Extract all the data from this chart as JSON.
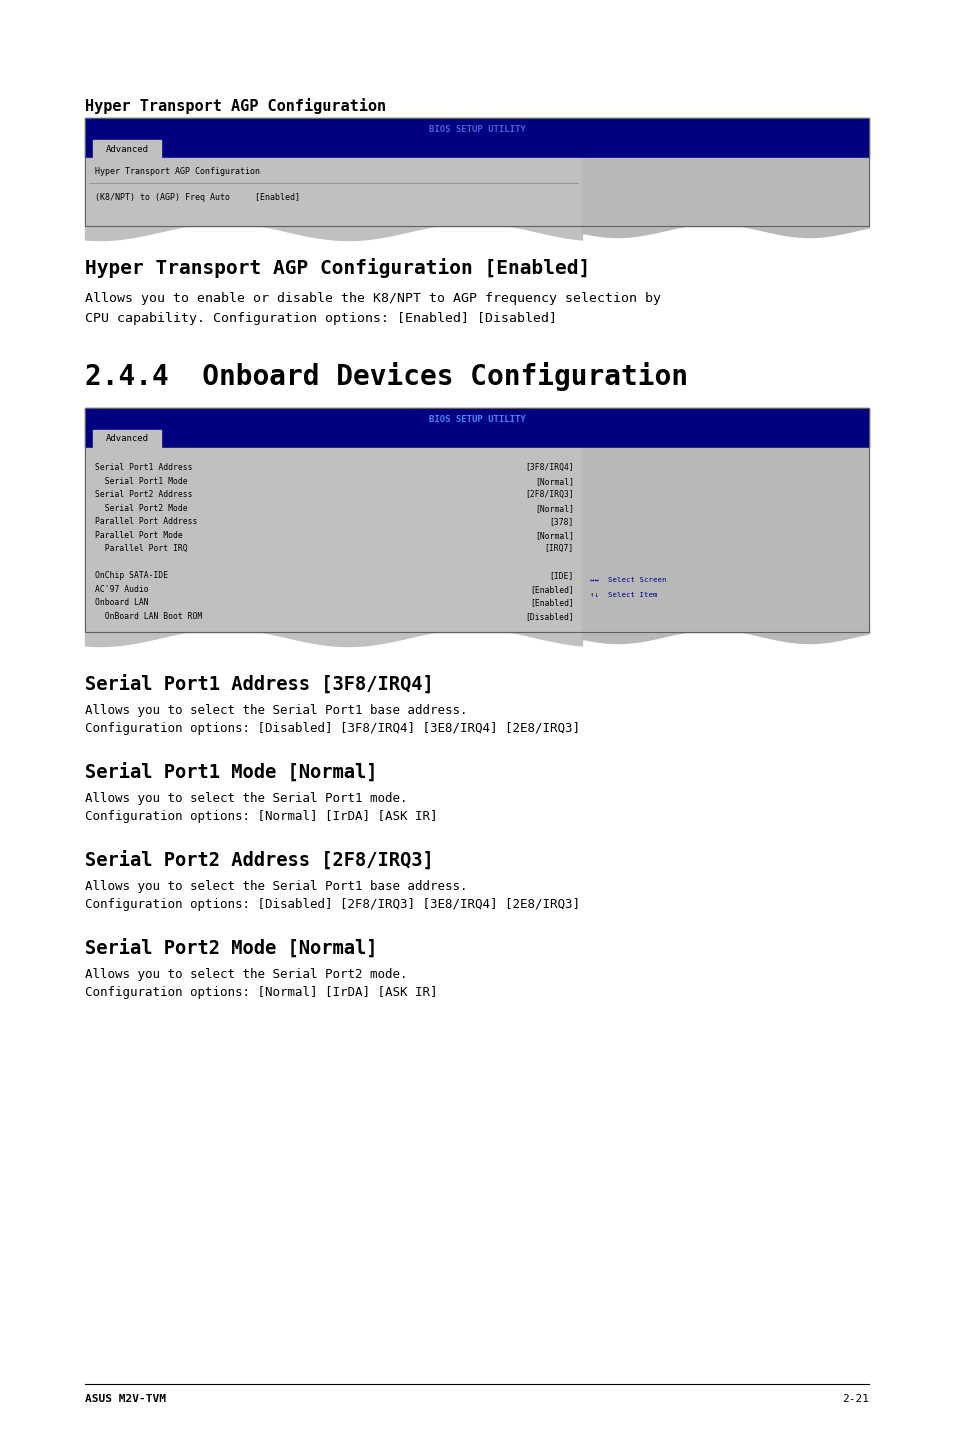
{
  "page_bg": "#ffffff",
  "page_width": 9.54,
  "page_height": 14.38,
  "dpi": 100,
  "section1_title": "Hyper Transport AGP Configuration",
  "section1_title_font": 11,
  "bios1": {
    "header_text": "BIOS SETUP UTILITY",
    "tab_text": "Advanced",
    "bg_color": "#c0c0c0",
    "header_bg": "#000080",
    "header_text_color": "#4466dd",
    "tab_bg": "#000080",
    "tab_selected_bg": "#c0c0c0",
    "tab_selected_text_color": "#000000",
    "right_panel_bg": "#b8b8b8",
    "row1": "Hyper Transport AGP Configuration",
    "row2": "(K8/NPT) to (AGP) Freq Auto     [Enabled]"
  },
  "section2_title": "Hyper Transport AGP Configuration [Enabled]",
  "section2_title_font": 14,
  "section2_body": "Allows you to enable or disable the K8/NPT to AGP frequency selection by\nCPU capability. Configuration options: [Enabled] [Disabled]",
  "section3_title": "2.4.4  Onboard Devices Configuration",
  "section3_title_font": 20,
  "bios2": {
    "header_text": "BIOS SETUP UTILITY",
    "tab_text": "Advanced",
    "bg_color": "#c0c0c0",
    "header_bg": "#000080",
    "header_text_color": "#4488ff",
    "tab_bg": "#000080",
    "tab_selected_bg": "#c0c0c0",
    "tab_selected_text_color": "#000000",
    "right_panel_bg": "#b8b8b8",
    "rows": [
      [
        "Serial Port1 Address",
        "[3F8/IRQ4]"
      ],
      [
        "  Serial Port1 Mode",
        "[Normal]"
      ],
      [
        "Serial Port2 Address",
        "[2F8/IRQ3]"
      ],
      [
        "  Serial Port2 Mode",
        "[Normal]"
      ],
      [
        "Parallel Port Address",
        "[378]"
      ],
      [
        "Parallel Port Mode",
        "[Normal]"
      ],
      [
        "  Parallel Port IRQ",
        "[IRQ7]"
      ],
      [
        "",
        ""
      ],
      [
        "OnChip SATA-IDE",
        "[IDE]"
      ],
      [
        "AC'97 Audio",
        "[Enabled]"
      ],
      [
        "Onboard LAN",
        "[Enabled]"
      ],
      [
        "  OnBoard LAN Boot ROM",
        "[Disabled]"
      ]
    ]
  },
  "section4_title": "Serial Port1 Address [3F8/IRQ4]",
  "section4_body": "Allows you to select the Serial Port1 base address.\nConfiguration options: [Disabled] [3F8/IRQ4] [3E8/IRQ4] [2E8/IRQ3]",
  "section5_title": "Serial Port1 Mode [Normal]",
  "section5_body": "Allows you to select the Serial Port1 mode.\nConfiguration options: [Normal] [IrDA] [ASK IR]",
  "section6_title": "Serial Port2 Address [2F8/IRQ3]",
  "section6_body": "Allows you to select the Serial Port1 base address.\nConfiguration options: [Disabled] [2F8/IRQ3] [3E8/IRQ4] [2E8/IRQ3]",
  "section7_title": "Serial Port2 Mode [Normal]",
  "section7_body": "Allows you to select the Serial Port2 mode.\nConfiguration options: [Normal] [IrDA] [ASK IR]",
  "footer_left": "ASUS M2V-TVM",
  "footer_right": "2-21"
}
